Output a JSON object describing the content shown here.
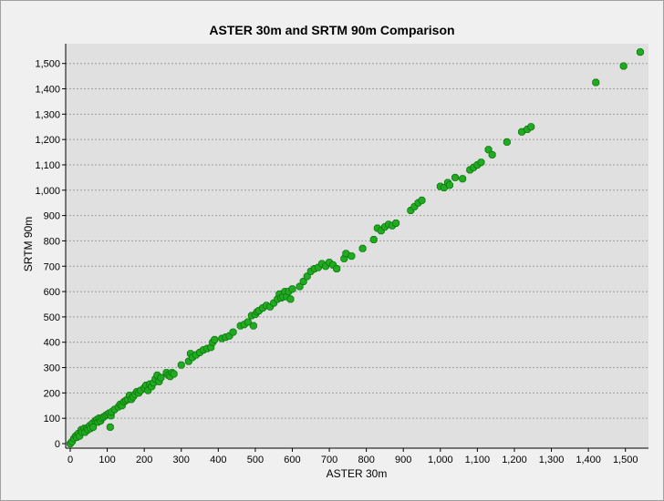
{
  "chart_data": {
    "type": "scatter",
    "title": "ASTER 30m and SRTM 90m Comparison",
    "xlabel": "ASTER 30m",
    "ylabel": "SRTM 90m",
    "xlim": [
      0,
      1550
    ],
    "ylim": [
      0,
      1560
    ],
    "x_ticks": [
      0,
      100,
      200,
      300,
      400,
      500,
      600,
      700,
      800,
      900,
      1000,
      1100,
      1200,
      1300,
      1400,
      1500
    ],
    "x_tick_labels": [
      "0",
      "100",
      "200",
      "300",
      "400",
      "500",
      "600",
      "700",
      "800",
      "900",
      "1,000",
      "1,100",
      "1,200",
      "1,300",
      "1,400",
      "1,500"
    ],
    "y_ticks": [
      0,
      100,
      200,
      300,
      400,
      500,
      600,
      700,
      800,
      900,
      1000,
      1100,
      1200,
      1300,
      1400,
      1500
    ],
    "y_tick_labels": [
      "0",
      "100",
      "200",
      "300",
      "400",
      "500",
      "600",
      "700",
      "800",
      "900",
      "1,000",
      "1,100",
      "1,200",
      "1,300",
      "1,400",
      "1,500"
    ],
    "grid": "horizontal",
    "colors": {
      "point": "#22aa22",
      "point_stroke": "#0a7a0a",
      "plot_bg": "#e0e0e0",
      "grid": "#a0a0a0"
    },
    "x": [
      0,
      5,
      10,
      15,
      18,
      22,
      25,
      30,
      32,
      38,
      40,
      45,
      48,
      52,
      55,
      60,
      62,
      68,
      72,
      75,
      78,
      82,
      85,
      90,
      95,
      100,
      105,
      108,
      110,
      112,
      120,
      130,
      135,
      140,
      145,
      150,
      155,
      160,
      165,
      170,
      175,
      180,
      185,
      190,
      200,
      205,
      210,
      215,
      220,
      225,
      230,
      235,
      240,
      245,
      260,
      265,
      270,
      275,
      280,
      300,
      320,
      325,
      330,
      340,
      350,
      360,
      370,
      380,
      385,
      390,
      410,
      420,
      430,
      440,
      460,
      470,
      480,
      490,
      495,
      500,
      505,
      510,
      520,
      530,
      540,
      550,
      560,
      565,
      570,
      575,
      580,
      585,
      590,
      595,
      600,
      620,
      630,
      640,
      650,
      660,
      670,
      680,
      690,
      700,
      710,
      720,
      740,
      745,
      760,
      790,
      820,
      830,
      840,
      850,
      860,
      870,
      880,
      920,
      930,
      940,
      950,
      1000,
      1010,
      1020,
      1025,
      1040,
      1060,
      1080,
      1090,
      1100,
      1110,
      1130,
      1140,
      1180,
      1220,
      1235,
      1245,
      1420,
      1495,
      1540
    ],
    "y": [
      0,
      8,
      20,
      30,
      25,
      40,
      30,
      55,
      45,
      60,
      45,
      60,
      55,
      70,
      60,
      80,
      65,
      90,
      95,
      85,
      100,
      90,
      100,
      105,
      110,
      115,
      120,
      65,
      110,
      125,
      135,
      145,
      155,
      150,
      165,
      170,
      175,
      190,
      175,
      185,
      195,
      205,
      200,
      210,
      220,
      230,
      210,
      235,
      225,
      240,
      255,
      270,
      245,
      260,
      280,
      270,
      265,
      280,
      275,
      310,
      325,
      355,
      340,
      350,
      360,
      370,
      375,
      380,
      400,
      410,
      415,
      420,
      425,
      440,
      465,
      470,
      480,
      505,
      465,
      510,
      520,
      525,
      535,
      545,
      540,
      555,
      570,
      590,
      575,
      580,
      600,
      580,
      600,
      570,
      610,
      620,
      640,
      660,
      680,
      690,
      695,
      710,
      700,
      715,
      705,
      690,
      730,
      750,
      740,
      770,
      805,
      850,
      840,
      855,
      865,
      860,
      870,
      920,
      935,
      950,
      960,
      1015,
      1010,
      1030,
      1020,
      1050,
      1045,
      1080,
      1090,
      1100,
      1110,
      1160,
      1140,
      1190,
      1230,
      1240,
      1250,
      1425,
      1490,
      1545
    ]
  }
}
